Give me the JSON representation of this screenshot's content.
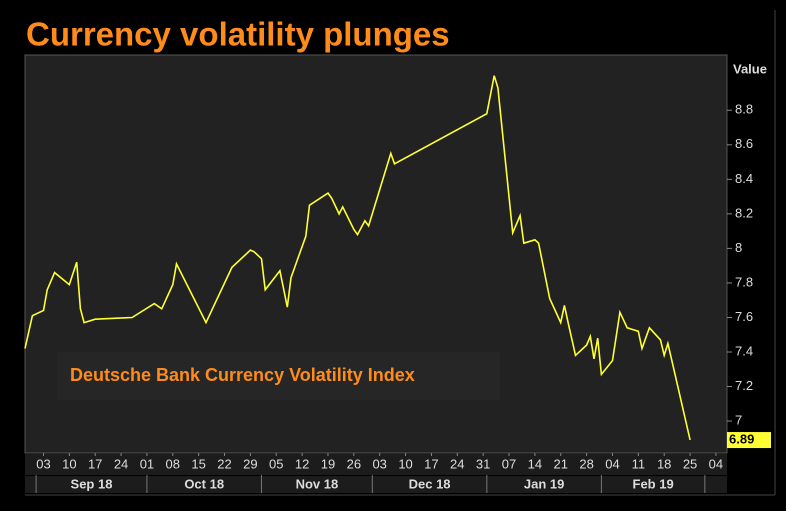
{
  "chart_data": {
    "type": "line",
    "title": "Currency volatility plunges",
    "y_axis_label": "Value",
    "x": [
      "2018-08-29",
      "2018-08-31",
      "2018-09-03",
      "2018-09-04",
      "2018-09-06",
      "2018-09-10",
      "2018-09-12",
      "2018-09-13",
      "2018-09-14",
      "2018-09-17",
      "2018-09-27",
      "2018-10-03",
      "2018-10-05",
      "2018-10-08",
      "2018-10-09",
      "2018-10-17",
      "2018-10-24",
      "2018-10-29",
      "2018-10-30",
      "2018-11-01",
      "2018-11-02",
      "2018-11-06",
      "2018-11-08",
      "2018-11-09",
      "2018-11-13",
      "2018-11-14",
      "2018-11-19",
      "2018-11-20",
      "2018-11-22",
      "2018-11-23",
      "2018-11-26",
      "2018-11-27",
      "2018-11-29",
      "2018-11-30",
      "2018-12-06",
      "2018-12-07",
      "2019-01-01",
      "2019-01-03",
      "2019-01-04",
      "2019-01-08",
      "2019-01-10",
      "2019-01-11",
      "2019-01-14",
      "2019-01-15",
      "2019-01-18",
      "2019-01-21",
      "2019-01-22",
      "2019-01-23",
      "2019-01-25",
      "2019-01-28",
      "2019-01-29",
      "2019-01-30",
      "2019-01-31",
      "2019-02-01",
      "2019-02-04",
      "2019-02-06",
      "2019-02-08",
      "2019-02-11",
      "2019-02-12",
      "2019-02-14",
      "2019-02-17",
      "2019-02-18",
      "2019-02-19",
      "2019-02-25"
    ],
    "series": [
      {
        "name": "Deutsche Bank Currency Volatility Index",
        "color": "#ffff33",
        "values": [
          7.42,
          7.61,
          7.64,
          7.76,
          7.86,
          7.79,
          7.92,
          7.65,
          7.57,
          7.59,
          7.6,
          7.68,
          7.65,
          7.79,
          7.91,
          7.57,
          7.89,
          7.99,
          7.98,
          7.94,
          7.76,
          7.87,
          7.66,
          7.83,
          8.07,
          8.25,
          8.32,
          8.29,
          8.2,
          8.24,
          8.11,
          8.08,
          8.16,
          8.13,
          8.55,
          8.49,
          8.78,
          9.0,
          8.93,
          8.09,
          8.19,
          8.03,
          8.05,
          8.03,
          7.71,
          7.57,
          7.67,
          7.57,
          7.38,
          7.44,
          7.49,
          7.36,
          7.48,
          7.27,
          7.35,
          7.63,
          7.54,
          7.52,
          7.42,
          7.54,
          7.47,
          7.38,
          7.45,
          6.89
        ]
      }
    ],
    "xlim": [
      "2018-08-29",
      "2019-03-07"
    ],
    "xticks": [
      {
        "value": "2018-09-03",
        "label": "03"
      },
      {
        "value": "2018-09-10",
        "label": "10"
      },
      {
        "value": "2018-09-17",
        "label": "17"
      },
      {
        "value": "2018-09-24",
        "label": "24"
      },
      {
        "value": "2018-10-01",
        "label": "01"
      },
      {
        "value": "2018-10-08",
        "label": "08"
      },
      {
        "value": "2018-10-15",
        "label": "15"
      },
      {
        "value": "2018-10-22",
        "label": "22"
      },
      {
        "value": "2018-10-29",
        "label": "29"
      },
      {
        "value": "2018-11-05",
        "label": "05"
      },
      {
        "value": "2018-11-12",
        "label": "12"
      },
      {
        "value": "2018-11-19",
        "label": "19"
      },
      {
        "value": "2018-11-26",
        "label": "26"
      },
      {
        "value": "2018-12-03",
        "label": "03"
      },
      {
        "value": "2018-12-10",
        "label": "10"
      },
      {
        "value": "2018-12-17",
        "label": "17"
      },
      {
        "value": "2018-12-24",
        "label": "24"
      },
      {
        "value": "2018-12-31",
        "label": "31"
      },
      {
        "value": "2019-01-07",
        "label": "07"
      },
      {
        "value": "2019-01-14",
        "label": "14"
      },
      {
        "value": "2019-01-21",
        "label": "21"
      },
      {
        "value": "2019-01-28",
        "label": "28"
      },
      {
        "value": "2019-02-04",
        "label": "04"
      },
      {
        "value": "2019-02-11",
        "label": "11"
      },
      {
        "value": "2019-02-18",
        "label": "18"
      },
      {
        "value": "2019-02-25",
        "label": "25"
      },
      {
        "value": "2019-03-04",
        "label": "04"
      }
    ],
    "months": [
      {
        "value": "2018-09",
        "label": "Sep 18"
      },
      {
        "value": "2018-10",
        "label": "Oct 18"
      },
      {
        "value": "2018-11",
        "label": "Nov 18"
      },
      {
        "value": "2018-12",
        "label": "Dec 18"
      },
      {
        "value": "2019-01",
        "label": "Jan 19"
      },
      {
        "value": "2019-02",
        "label": "Feb 19"
      },
      {
        "value": "2019-03",
        "label": ""
      }
    ],
    "ylim": [
      6.815,
      9.12
    ],
    "yticks": [
      7,
      7.2,
      7.4,
      7.6,
      7.8,
      8,
      8.2,
      8.4,
      8.6,
      8.8
    ]
  }
}
